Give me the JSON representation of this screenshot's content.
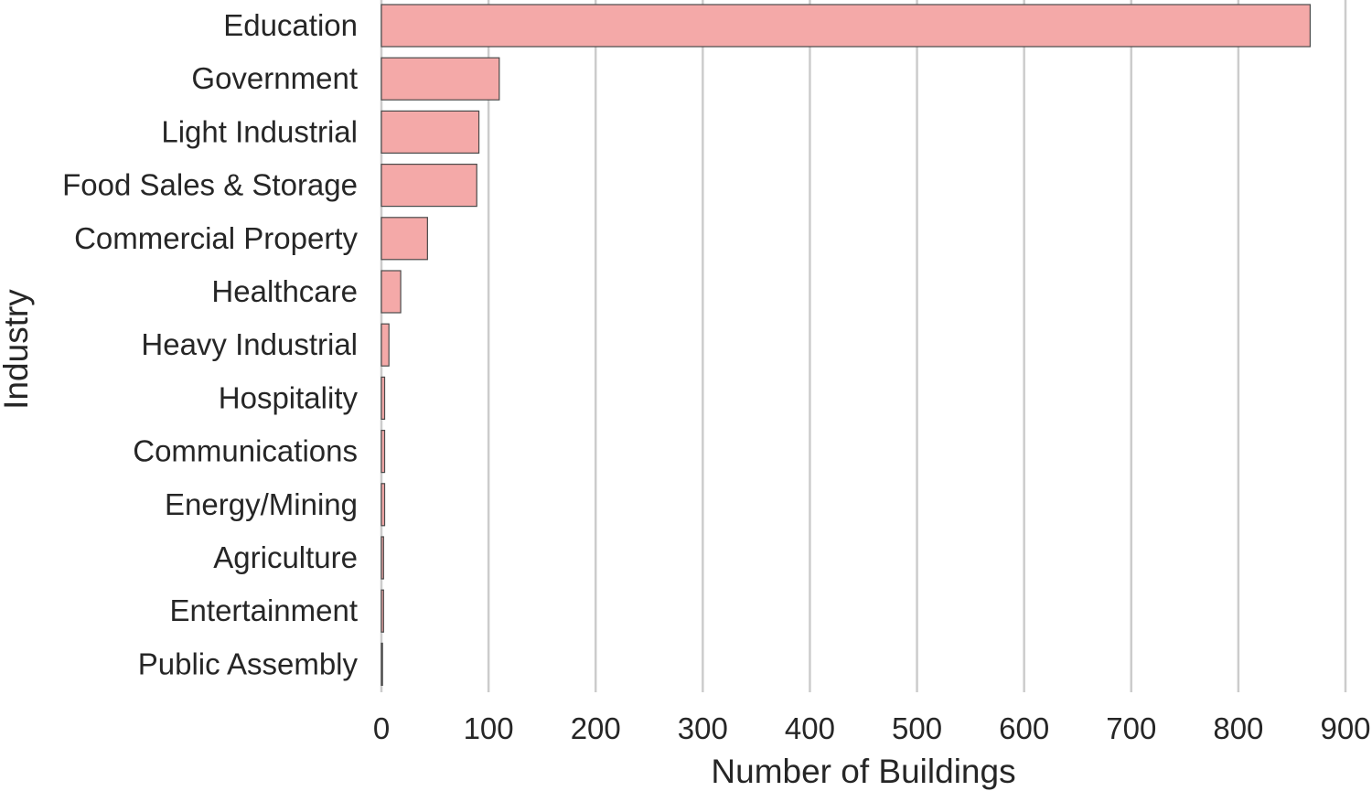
{
  "chart_data": {
    "type": "bar",
    "orientation": "horizontal",
    "categories": [
      "Education",
      "Government",
      "Light Industrial",
      "Food Sales & Storage",
      "Commercial Property",
      "Healthcare",
      "Heavy Industrial",
      "Hospitality",
      "Communications",
      "Energy/Mining",
      "Agriculture",
      "Entertainment",
      "Public Assembly"
    ],
    "values": [
      867,
      110,
      91,
      89,
      43,
      18,
      7,
      3,
      3,
      3,
      2,
      2,
      1
    ],
    "title": "",
    "xlabel": "Number of Buildings",
    "ylabel": "Industry",
    "xlim": [
      0,
      900
    ],
    "xticks": [
      0,
      100,
      200,
      300,
      400,
      500,
      600,
      700,
      800,
      900
    ],
    "grid": "vertical",
    "legend": "none",
    "colors": {
      "bar_fill": "#f4a9a8",
      "bar_edge": "#4a4a4a",
      "grid": "#cccccc",
      "text": "#262626"
    }
  }
}
